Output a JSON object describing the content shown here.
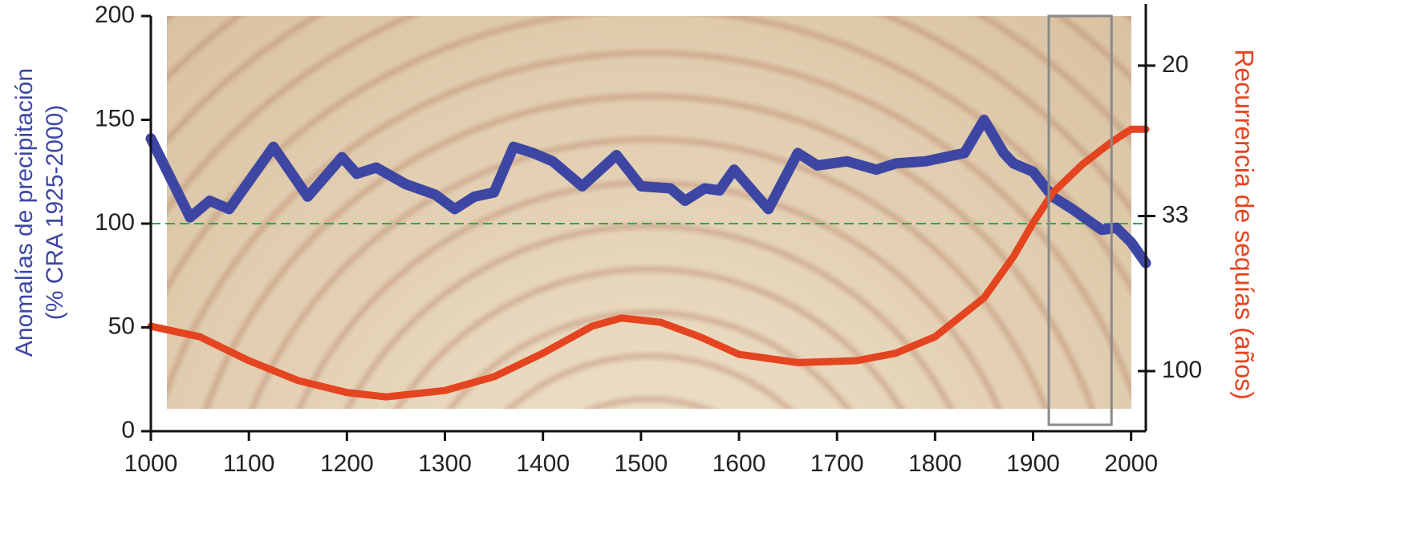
{
  "chart_data": {
    "type": "line",
    "x_label_lines": [
      "Anomalías de precipitación",
      "(% CRA 1925-2000)"
    ],
    "y2_label": "Recurrencia de sequías (años)",
    "xlim": [
      1000,
      2015
    ],
    "xticks": [
      1000,
      1100,
      1200,
      1300,
      1400,
      1500,
      1600,
      1700,
      1800,
      1900,
      2000
    ],
    "ylim": [
      0,
      200
    ],
    "yticks": [
      0,
      50,
      100,
      150,
      200
    ],
    "y2lim": [
      470,
      17.7
    ],
    "y2ticks": [
      20,
      33,
      100
    ],
    "y2scale": "reciprocal",
    "reference_line": {
      "value": 100,
      "color": "#2fa84f"
    },
    "highlight": {
      "xlim": [
        1916,
        1980
      ],
      "color": "#8a8a8a"
    },
    "series": [
      {
        "name": "Anomalías de precipitación",
        "color": "#3d47a3",
        "x": [
          1000,
          1040,
          1060,
          1080,
          1125,
          1160,
          1195,
          1210,
          1230,
          1260,
          1290,
          1310,
          1330,
          1350,
          1370,
          1390,
          1410,
          1440,
          1475,
          1500,
          1530,
          1545,
          1565,
          1580,
          1595,
          1630,
          1660,
          1680,
          1710,
          1740,
          1760,
          1790,
          1810,
          1830,
          1850,
          1870,
          1880,
          1900,
          1920,
          1940,
          1970,
          1985,
          2000,
          2015
        ],
        "values": [
          141,
          103,
          111,
          107,
          137,
          113,
          132,
          124,
          127,
          119,
          114,
          107,
          113,
          115,
          137,
          134,
          130,
          118,
          133,
          118,
          117,
          111,
          117,
          116,
          126,
          107,
          134,
          128,
          130,
          126,
          129,
          130,
          132,
          134,
          150,
          134,
          129,
          125,
          113,
          107,
          97,
          98,
          91,
          81
        ]
      },
      {
        "name": "Recurrencia de sequías",
        "color": "#e4441f",
        "axis": "y2",
        "x": [
          1000,
          1050,
          1100,
          1150,
          1200,
          1240,
          1300,
          1350,
          1400,
          1450,
          1480,
          1520,
          1560,
          1600,
          1660,
          1720,
          1760,
          1800,
          1850,
          1880,
          1900,
          1920,
          1950,
          1980,
          2000,
          2015
        ],
        "values": [
          63,
          69,
          88,
          114,
          139,
          151,
          134,
          108,
          81,
          63,
          59,
          61,
          69,
          82,
          90,
          88,
          81,
          69,
          51,
          40,
          34,
          30,
          27,
          25,
          24,
          24
        ]
      }
    ]
  }
}
